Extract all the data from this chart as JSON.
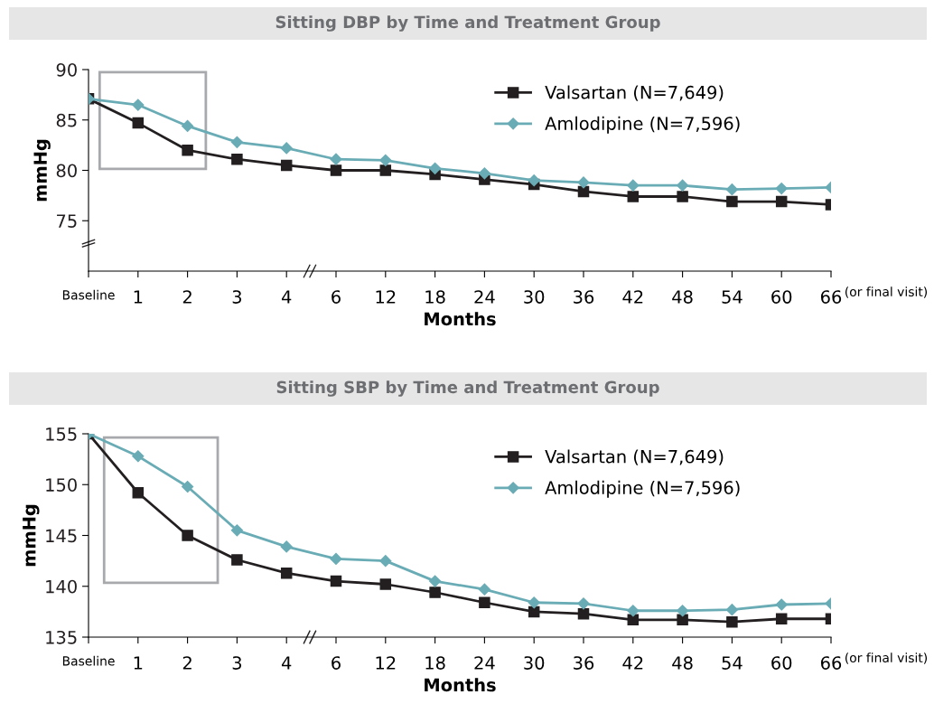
{
  "chart_data": [
    {
      "type": "line",
      "title": "Sitting DBP by Time and Treatment Group",
      "xlabel": "Months",
      "ylabel": "mmHg",
      "categories": [
        "Baseline",
        "1",
        "2",
        "3",
        "4",
        "6",
        "12",
        "18",
        "24",
        "30",
        "36",
        "42",
        "48",
        "54",
        "60",
        "66"
      ],
      "series": [
        {
          "name": "Valsartan (N=7,649)",
          "color": "#231f20",
          "marker": "square",
          "values": [
            87.1,
            84.7,
            82.0,
            81.1,
            80.5,
            80.0,
            80.0,
            79.6,
            79.1,
            78.6,
            77.9,
            77.4,
            77.4,
            76.9,
            76.9,
            76.6
          ]
        },
        {
          "name": "Amlodipine (N=7,596)",
          "color": "#6aacb5",
          "marker": "diamond",
          "values": [
            87.1,
            86.5,
            84.4,
            82.8,
            82.2,
            81.1,
            81.0,
            80.2,
            79.7,
            79.0,
            78.8,
            78.5,
            78.5,
            78.1,
            78.2,
            78.3
          ]
        }
      ],
      "ylim": [
        70,
        90
      ],
      "yticks": [
        75,
        80,
        85,
        90
      ],
      "grid": false,
      "legend": "top right",
      "line_style": "solid",
      "annotations": [
        "(or final visit)"
      ]
    },
    {
      "type": "line",
      "title": "Sitting SBP by Time and Treatment Group",
      "xlabel": "Months",
      "ylabel": "mmHg",
      "categories": [
        "Baseline",
        "1",
        "2",
        "3",
        "4",
        "6",
        "12",
        "18",
        "24",
        "30",
        "36",
        "42",
        "48",
        "54",
        "60",
        "66"
      ],
      "series": [
        {
          "name": "Valsartan (N=7,649)",
          "color": "#231f20",
          "marker": "square",
          "values": [
            155,
            149.2,
            145.0,
            142.6,
            141.3,
            140.5,
            140.2,
            139.4,
            138.4,
            137.5,
            137.3,
            136.7,
            136.7,
            136.5,
            136.8,
            136.8
          ]
        },
        {
          "name": "Amlodipine (N=7,596)",
          "color": "#6aacb5",
          "marker": "diamond",
          "values": [
            155,
            152.8,
            149.8,
            145.5,
            143.9,
            142.7,
            142.5,
            140.5,
            139.7,
            138.4,
            138.3,
            137.6,
            137.6,
            137.7,
            138.2,
            138.3
          ]
        }
      ],
      "ylim": [
        135,
        155
      ],
      "yticks": [
        135,
        140,
        145,
        150,
        155
      ],
      "grid": false,
      "legend": "top right",
      "line_style": "solid",
      "annotations": [
        "(or final visit)"
      ]
    }
  ]
}
